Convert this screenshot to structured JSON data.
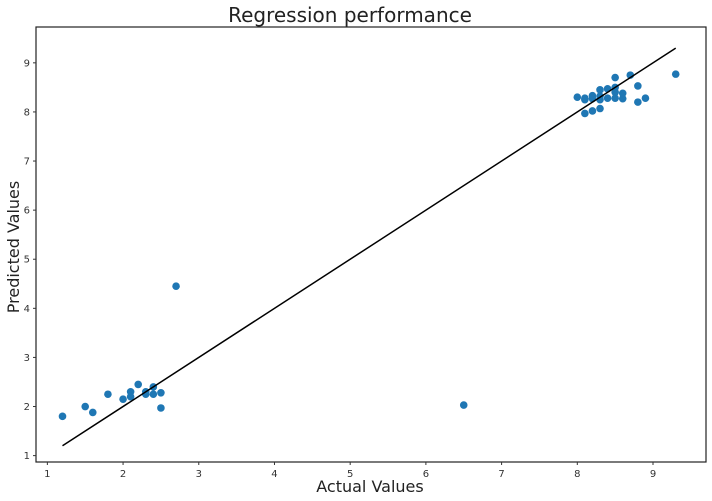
{
  "chart_data": {
    "type": "scatter",
    "title": "Regression performance",
    "xlabel": "Actual Values",
    "ylabel": "Predicted Values",
    "xlim": [
      0.85,
      9.7
    ],
    "ylim": [
      0.87,
      9.73
    ],
    "xticks": [
      1,
      2,
      3,
      4,
      5,
      6,
      7,
      8,
      9
    ],
    "yticks": [
      1,
      2,
      3,
      4,
      5,
      6,
      7,
      8,
      9
    ],
    "grid": false,
    "colors": {
      "points": "#1f77b4",
      "line": "#000000",
      "frame": "#222222"
    },
    "series": [
      {
        "type": "scatter",
        "points": [
          [
            1.2,
            1.8
          ],
          [
            1.5,
            2.0
          ],
          [
            1.6,
            1.88
          ],
          [
            1.8,
            2.25
          ],
          [
            2.0,
            2.15
          ],
          [
            2.1,
            2.2
          ],
          [
            2.1,
            2.3
          ],
          [
            2.2,
            2.45
          ],
          [
            2.3,
            2.25
          ],
          [
            2.3,
            2.3
          ],
          [
            2.4,
            2.25
          ],
          [
            2.4,
            2.4
          ],
          [
            2.5,
            1.97
          ],
          [
            2.5,
            2.28
          ],
          [
            2.7,
            4.45
          ],
          [
            6.5,
            2.03
          ],
          [
            8.0,
            8.3
          ],
          [
            8.1,
            7.97
          ],
          [
            8.1,
            8.25
          ],
          [
            8.1,
            8.28
          ],
          [
            8.2,
            8.02
          ],
          [
            8.2,
            8.27
          ],
          [
            8.2,
            8.33
          ],
          [
            8.3,
            8.07
          ],
          [
            8.3,
            8.25
          ],
          [
            8.3,
            8.32
          ],
          [
            8.3,
            8.45
          ],
          [
            8.4,
            8.28
          ],
          [
            8.4,
            8.47
          ],
          [
            8.5,
            8.28
          ],
          [
            8.5,
            8.4
          ],
          [
            8.5,
            8.5
          ],
          [
            8.5,
            8.7
          ],
          [
            8.6,
            8.27
          ],
          [
            8.6,
            8.38
          ],
          [
            8.7,
            8.75
          ],
          [
            8.8,
            8.2
          ],
          [
            8.8,
            8.53
          ],
          [
            8.9,
            8.28
          ],
          [
            9.3,
            8.77
          ]
        ]
      },
      {
        "type": "line",
        "points": [
          [
            1.2,
            1.2
          ],
          [
            9.3,
            9.3
          ]
        ]
      }
    ]
  }
}
